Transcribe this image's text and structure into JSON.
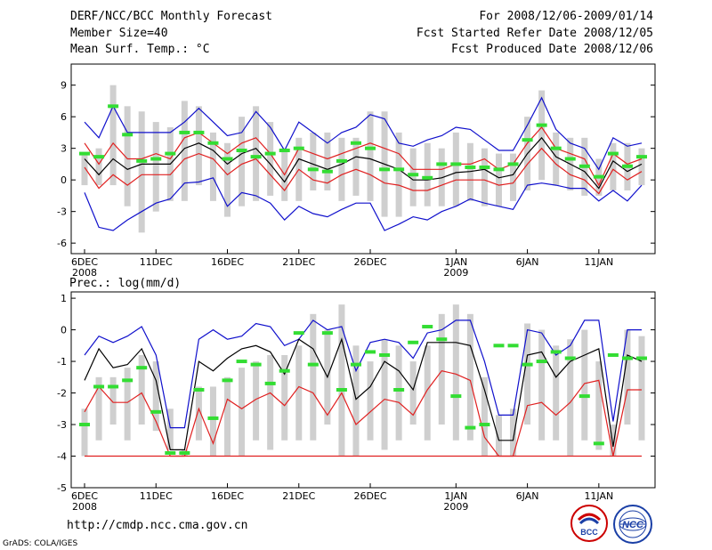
{
  "header": {
    "title": "DERF/NCC/BCC Monthly Forecast",
    "member_size": "Member Size=40",
    "variable": "Mean Surf. Temp.: °C",
    "period": "For 2008/12/06-2009/01/14",
    "started": "Fcst Started Refer Date 2008/12/05",
    "produced": "Fcst Produced Date 2008/12/06"
  },
  "footer": {
    "url": "http://cmdp.ncc.cma.gov.cn",
    "credit": "GrADS: COLA/IGES",
    "logo_bcc": "BCC",
    "logo_ncc": "NCC"
  },
  "colors": {
    "bar": "#cfcfcf",
    "ensemble_mean": "#000000",
    "spread_inner": "#e02020",
    "spread_outer": "#1010cc",
    "member_marker": "#33dd33"
  },
  "chart_data": [
    {
      "type": "line",
      "title": "Mean Surf. Temp.: °C",
      "ylabel": "°C",
      "ylim": [
        -7,
        11
      ],
      "yticks": [
        -6,
        -3,
        0,
        3,
        6,
        9
      ],
      "xticks": [
        {
          "day": 0,
          "label": "6DEC",
          "sub": "2008"
        },
        {
          "day": 5,
          "label": "11DEC",
          "sub": ""
        },
        {
          "day": 10,
          "label": "16DEC",
          "sub": ""
        },
        {
          "day": 15,
          "label": "21DEC",
          "sub": ""
        },
        {
          "day": 20,
          "label": "26DEC",
          "sub": ""
        },
        {
          "day": 26,
          "label": "1JAN",
          "sub": "2009"
        },
        {
          "day": 31,
          "label": "6JAN",
          "sub": ""
        },
        {
          "day": 36,
          "label": "11JAN",
          "sub": ""
        }
      ],
      "series": [
        {
          "name": "bar_top",
          "values": [
            2.5,
            3.0,
            9.0,
            7.0,
            6.5,
            5.5,
            5.0,
            7.5,
            7.0,
            4.5,
            3.5,
            6.0,
            7.0,
            5.5,
            3.0,
            4.0,
            4.5,
            4.5,
            4.0,
            4.0,
            6.5,
            6.5,
            4.5,
            3.0,
            3.5,
            3.0,
            4.5,
            3.5,
            3.0,
            2.5,
            2.5,
            6.0,
            8.5,
            4.5,
            4.0,
            4.0,
            2.0,
            3.5,
            3.5,
            3.0
          ]
        },
        {
          "name": "bar_bottom",
          "values": [
            -0.5,
            -0.5,
            -0.5,
            -2.5,
            -5.0,
            -3.0,
            -2.0,
            -2.0,
            -0.5,
            -2.0,
            -3.5,
            -2.5,
            -2.0,
            -1.5,
            -2.0,
            -2.0,
            -1.0,
            -1.0,
            -2.0,
            -1.5,
            -2.0,
            -3.5,
            -3.5,
            -2.5,
            -2.5,
            -2.5,
            -2.5,
            -2.0,
            -2.5,
            -2.5,
            -2.0,
            -1.0,
            0.0,
            -0.5,
            -1.0,
            -1.5,
            -1.5,
            -1.0,
            -1.0,
            -0.5
          ]
        },
        {
          "name": "outer_upper",
          "values": [
            5.5,
            4.0,
            7.0,
            4.5,
            4.5,
            4.5,
            4.5,
            5.5,
            6.8,
            5.5,
            4.2,
            4.5,
            6.5,
            5.0,
            2.8,
            5.5,
            4.5,
            3.5,
            4.5,
            5.0,
            6.2,
            5.8,
            3.5,
            3.2,
            3.8,
            4.2,
            5.0,
            4.8,
            3.8,
            2.8,
            2.8,
            5.2,
            7.8,
            4.8,
            3.5,
            3.0,
            1.0,
            4.0,
            3.2,
            3.5
          ]
        },
        {
          "name": "red_upper",
          "values": [
            3.5,
            1.5,
            3.5,
            2.0,
            2.0,
            2.5,
            2.0,
            4.0,
            4.5,
            3.5,
            2.5,
            3.5,
            4.0,
            2.5,
            0.5,
            3.0,
            2.5,
            2.0,
            2.5,
            3.0,
            3.5,
            3.0,
            2.5,
            1.0,
            1.0,
            1.0,
            1.5,
            1.5,
            2.0,
            1.0,
            1.5,
            3.5,
            5.0,
            3.0,
            2.5,
            2.0,
            -0.5,
            2.5,
            1.5,
            2.0
          ]
        },
        {
          "name": "ensemble_mean",
          "values": [
            2.0,
            0.5,
            2.0,
            1.0,
            1.5,
            1.5,
            1.5,
            3.0,
            3.5,
            2.8,
            1.5,
            2.5,
            3.0,
            1.5,
            -0.2,
            2.0,
            1.5,
            1.0,
            1.5,
            2.2,
            2.0,
            1.5,
            1.0,
            0.0,
            0.0,
            0.2,
            0.7,
            0.8,
            1.0,
            0.2,
            0.5,
            2.5,
            4.0,
            2.2,
            1.5,
            0.8,
            -0.8,
            1.8,
            0.8,
            1.5
          ]
        },
        {
          "name": "red_lower",
          "values": [
            1.2,
            -0.8,
            0.5,
            -0.5,
            0.5,
            0.5,
            0.5,
            2.0,
            2.5,
            2.0,
            0.5,
            1.5,
            2.0,
            0.5,
            -1.0,
            1.0,
            0.0,
            -0.3,
            0.5,
            1.0,
            0.5,
            -0.3,
            -0.5,
            -1.0,
            -1.0,
            -0.5,
            0.0,
            0.0,
            0.0,
            -0.5,
            -0.3,
            1.5,
            3.0,
            1.5,
            0.5,
            0.0,
            -1.3,
            1.0,
            0.0,
            0.8
          ]
        },
        {
          "name": "outer_lower",
          "values": [
            -1.2,
            -4.5,
            -4.8,
            -3.8,
            -3.0,
            -2.2,
            -1.8,
            -0.3,
            -0.2,
            0.2,
            -2.5,
            -1.2,
            -1.5,
            -2.2,
            -3.8,
            -2.5,
            -3.2,
            -3.5,
            -2.8,
            -2.2,
            -2.2,
            -4.8,
            -4.2,
            -3.5,
            -3.8,
            -3.0,
            -2.5,
            -1.8,
            -2.2,
            -2.5,
            -2.8,
            -0.5,
            -0.3,
            -0.5,
            -0.8,
            -0.8,
            -2.0,
            -1.0,
            -2.0,
            -0.5
          ]
        },
        {
          "name": "member_marker",
          "values": [
            2.5,
            2.2,
            7.0,
            4.3,
            1.8,
            2.0,
            2.5,
            4.5,
            4.5,
            3.5,
            2.0,
            2.8,
            2.2,
            2.5,
            2.8,
            3.0,
            1.0,
            0.8,
            1.8,
            3.5,
            3.0,
            1.0,
            1.0,
            0.5,
            0.2,
            1.5,
            1.5,
            1.2,
            1.2,
            1.0,
            1.5,
            3.8,
            5.2,
            3.0,
            2.0,
            1.3,
            0.3,
            2.5,
            1.3,
            2.2
          ]
        }
      ]
    },
    {
      "type": "line",
      "title": "Prec.: log(mm/d)",
      "ylabel": "log(mm/d)",
      "ylim": [
        -5,
        1.2
      ],
      "yticks": [
        -5,
        -4,
        -3,
        -2,
        -1,
        0,
        1
      ],
      "xticks": [
        {
          "day": 0,
          "label": "6DEC",
          "sub": "2008"
        },
        {
          "day": 5,
          "label": "11DEC",
          "sub": ""
        },
        {
          "day": 10,
          "label": "16DEC",
          "sub": ""
        },
        {
          "day": 15,
          "label": "21DEC",
          "sub": ""
        },
        {
          "day": 20,
          "label": "26DEC",
          "sub": ""
        },
        {
          "day": 26,
          "label": "1JAN",
          "sub": "2009"
        },
        {
          "day": 31,
          "label": "6JAN",
          "sub": ""
        },
        {
          "day": 36,
          "label": "11JAN",
          "sub": ""
        }
      ],
      "series": [
        {
          "name": "bar_top",
          "values": [
            -2.5,
            -1.5,
            -1.5,
            -1.2,
            -0.8,
            -1.0,
            -2.5,
            -3.8,
            -1.8,
            -1.8,
            -1.5,
            -1.2,
            -1.0,
            -0.8,
            -0.8,
            -0.5,
            0.5,
            0.0,
            0.8,
            -0.5,
            -1.0,
            -0.3,
            -0.5,
            -1.0,
            -0.5,
            0.5,
            0.8,
            0.5,
            -1.5,
            -2.7,
            -2.5,
            0.2,
            0.0,
            -0.5,
            -0.3,
            0.0,
            -1.0,
            -3.0,
            0.0,
            -0.2
          ]
        },
        {
          "name": "bar_bottom",
          "values": [
            -4.0,
            -3.5,
            -3.0,
            -3.5,
            -3.0,
            -3.2,
            -3.8,
            -4.0,
            -3.5,
            -4.0,
            -4.0,
            -4.0,
            -3.5,
            -3.8,
            -3.5,
            -3.5,
            -3.5,
            -3.0,
            -4.0,
            -4.0,
            -3.5,
            -3.8,
            -3.5,
            -3.0,
            -3.5,
            -3.0,
            -3.5,
            -3.5,
            -4.0,
            -4.0,
            -4.0,
            -3.0,
            -3.5,
            -3.5,
            -4.0,
            -3.5,
            -3.8,
            -4.0,
            -3.0,
            -3.5
          ]
        },
        {
          "name": "outer_upper",
          "values": [
            -0.8,
            -0.2,
            -0.4,
            -0.2,
            0.1,
            -0.8,
            -3.1,
            -3.1,
            -0.3,
            0.0,
            -0.3,
            -0.2,
            0.2,
            0.1,
            -0.5,
            -0.3,
            0.3,
            0.0,
            0.1,
            -1.3,
            -0.4,
            -0.3,
            -0.4,
            -0.9,
            -0.1,
            0.0,
            0.3,
            0.3,
            -1.0,
            -2.7,
            -2.7,
            0.0,
            -0.1,
            -0.8,
            -0.5,
            0.3,
            0.3,
            -2.9,
            0.0,
            0.0
          ]
        },
        {
          "name": "ensemble_mean",
          "values": [
            -1.6,
            -0.6,
            -1.2,
            -1.1,
            -0.6,
            -1.6,
            -3.8,
            -3.8,
            -1.0,
            -1.3,
            -0.9,
            -0.6,
            -0.5,
            -0.7,
            -1.4,
            -0.3,
            -0.6,
            -1.5,
            -0.3,
            -2.2,
            -1.8,
            -1.0,
            -1.3,
            -1.9,
            -0.4,
            -0.4,
            -0.4,
            -0.5,
            -1.9,
            -3.5,
            -3.5,
            -0.8,
            -0.7,
            -1.5,
            -1.0,
            -0.8,
            -0.6,
            -3.7,
            -0.8,
            -1.0
          ]
        },
        {
          "name": "red_lower",
          "values": [
            -2.6,
            -1.8,
            -2.3,
            -2.3,
            -2.0,
            -2.9,
            -4.0,
            -4.0,
            -2.5,
            -3.6,
            -2.2,
            -2.5,
            -2.2,
            -2.0,
            -2.4,
            -1.8,
            -2.0,
            -2.7,
            -2.0,
            -3.0,
            -2.6,
            -2.2,
            -2.3,
            -2.7,
            -1.9,
            -1.3,
            -1.4,
            -1.6,
            -3.4,
            -4.0,
            -4.0,
            -2.4,
            -2.3,
            -2.7,
            -2.3,
            -1.7,
            -1.6,
            -4.0,
            -1.9,
            -1.9
          ]
        },
        {
          "name": "baseline_red",
          "values": [
            -4.0,
            -4.0,
            -4.0,
            -4.0,
            -4.0,
            -4.0,
            -4.0,
            -4.0,
            -4.0,
            -4.0,
            -4.0,
            -4.0,
            -4.0,
            -4.0,
            -4.0,
            -4.0,
            -4.0,
            -4.0,
            -4.0,
            -4.0,
            -4.0,
            -4.0,
            -4.0,
            -4.0,
            -4.0,
            -4.0,
            -4.0,
            -4.0,
            -4.0,
            -4.0,
            -4.0,
            -4.0,
            -4.0,
            -4.0,
            -4.0,
            -4.0,
            -4.0,
            -4.0,
            -4.0,
            -4.0
          ]
        },
        {
          "name": "member_marker",
          "values": [
            -3.0,
            -1.8,
            -1.8,
            -1.6,
            -1.2,
            -2.6,
            -3.9,
            -3.9,
            -1.9,
            -2.8,
            -1.6,
            -1.0,
            -1.1,
            -1.7,
            -1.3,
            -0.1,
            -1.1,
            -0.1,
            -1.9,
            -1.1,
            -0.7,
            -0.8,
            -1.9,
            -0.4,
            0.1,
            -0.3,
            -2.1,
            -3.1,
            -3.0,
            -0.5,
            -0.5,
            -1.1,
            -1.0,
            -0.7,
            -0.9,
            -2.1,
            -3.6,
            -0.8,
            -0.9,
            -0.9
          ]
        }
      ]
    }
  ]
}
